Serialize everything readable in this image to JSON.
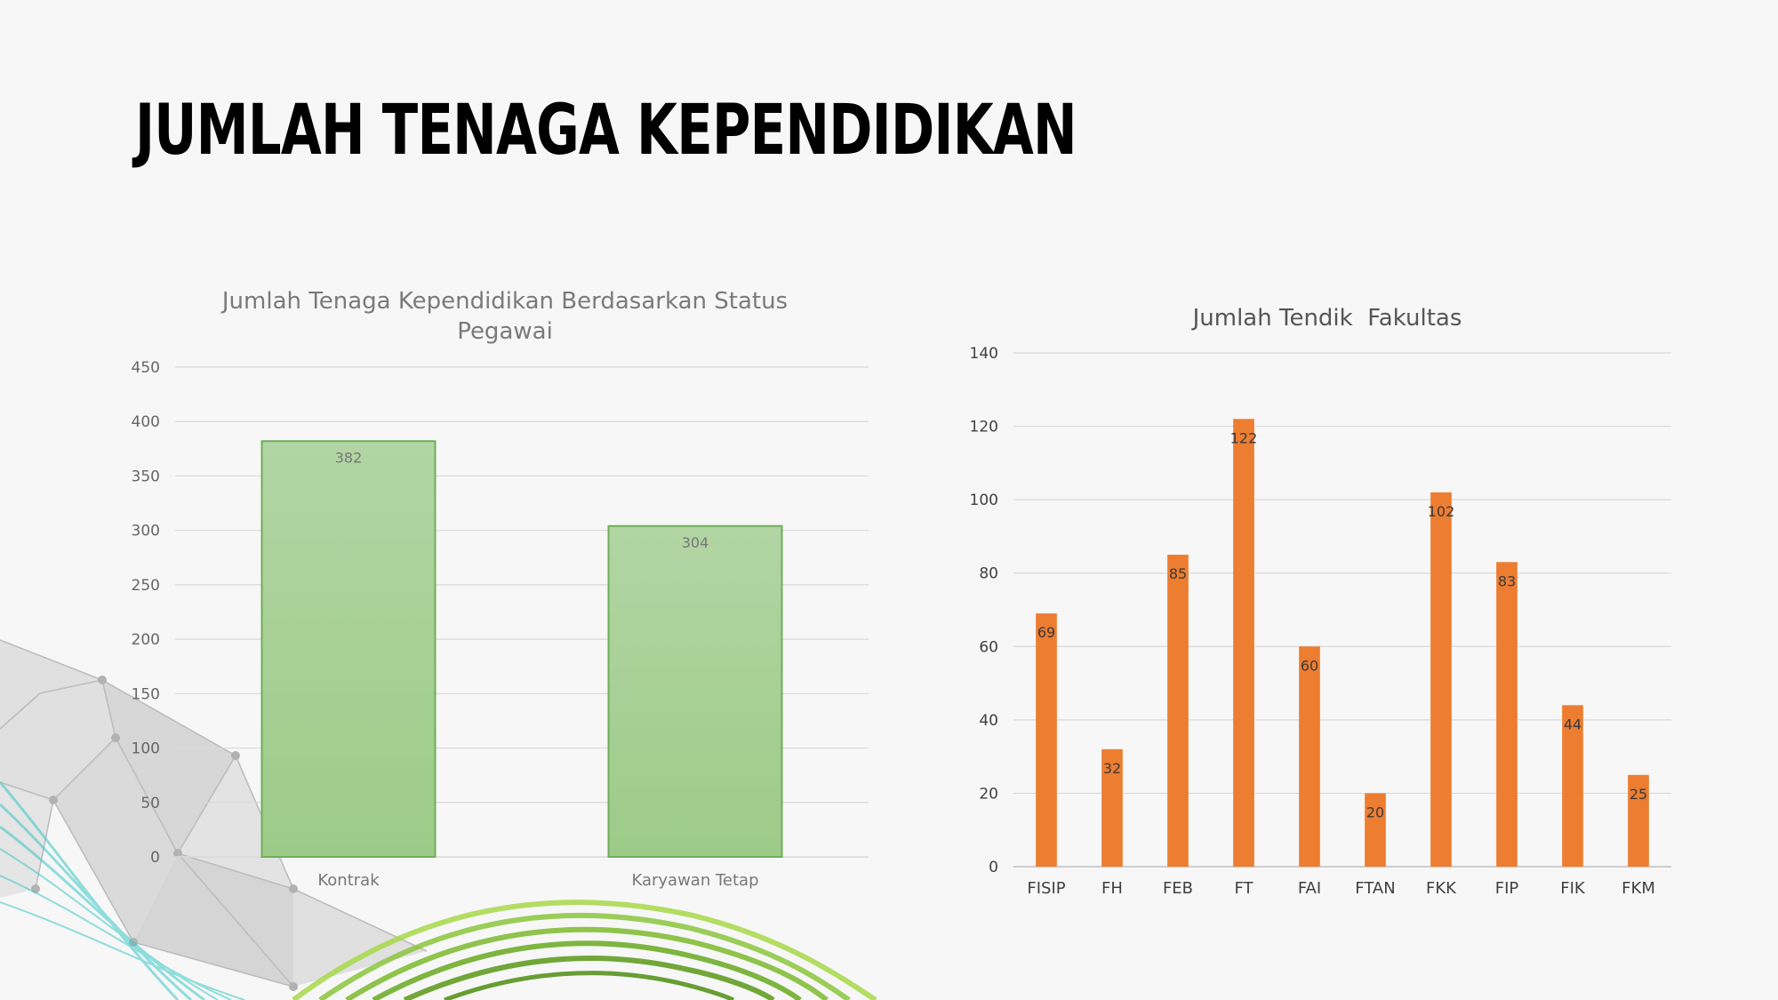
{
  "page": {
    "title": "JUMLAH TENAGA KEPENDIDIKAN"
  },
  "colors": {
    "background": "#f7f7f7",
    "green_bar_top": "#b2d5a4",
    "green_bar_bottom": "#9ccb88",
    "green_bar_border": "#6fae5a",
    "orange_bar": "#ed7d31",
    "gridline": "#d9d9d9",
    "tick_text": "#666666"
  },
  "chart_data": [
    {
      "type": "bar",
      "title": "Jumlah Tenaga Kependidikan Berdasarkan Status Pegawai",
      "title_lines": [
        "Jumlah Tenaga Kependidikan Berdasarkan Status",
        "Pegawai"
      ],
      "categories": [
        "Kontrak",
        "Karyawan Tetap"
      ],
      "values": [
        382,
        304
      ],
      "yticks": [
        "0",
        "50",
        "100",
        "150",
        "200",
        "250",
        "300",
        "350",
        "400",
        "450"
      ],
      "ylim": [
        0,
        450
      ],
      "grid": true,
      "legend": "none"
    },
    {
      "type": "bar",
      "title": "Jumlah Tendik  Fakultas",
      "categories": [
        "FISIP",
        "FH",
        "FEB",
        "FT",
        "FAI",
        "FTAN",
        "FKK",
        "FIP",
        "FIK",
        "FKM"
      ],
      "values": [
        69,
        32,
        85,
        122,
        60,
        20,
        102,
        83,
        44,
        25
      ],
      "yticks": [
        "0",
        "20",
        "40",
        "60",
        "80",
        "100",
        "120",
        "140"
      ],
      "ylim": [
        0,
        140
      ],
      "grid": true,
      "legend": "none"
    }
  ]
}
